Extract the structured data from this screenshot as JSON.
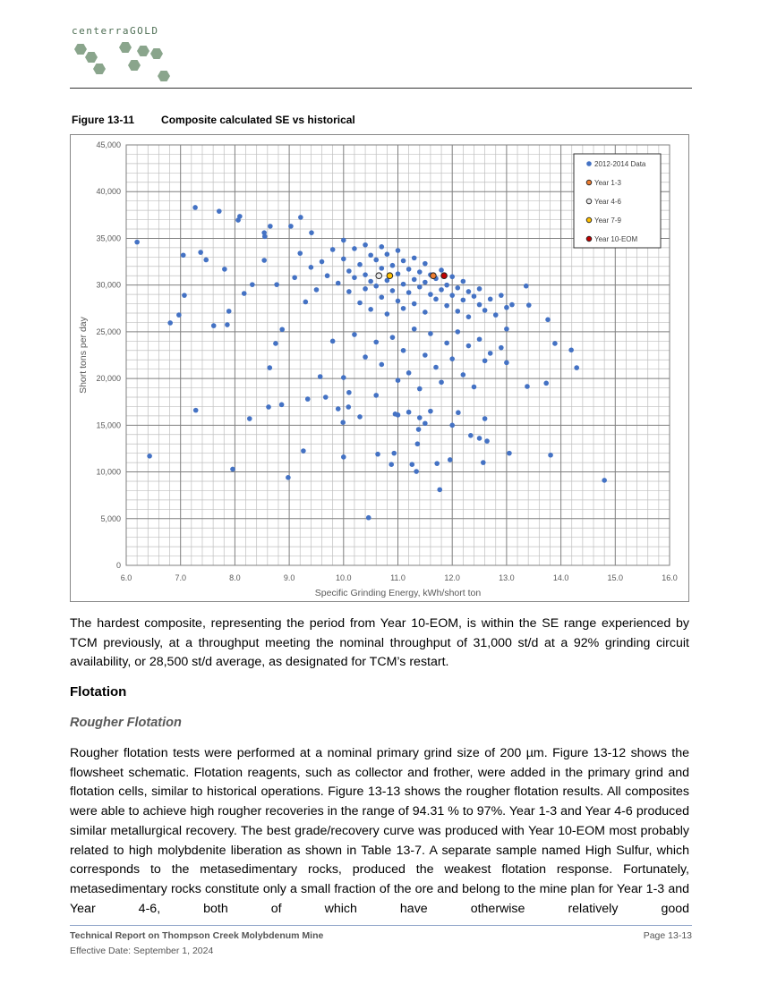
{
  "header": {
    "logo": "centerraGOLD"
  },
  "figure": {
    "label": "Figure 13-11",
    "title": "Composite calculated SE vs historical"
  },
  "chart_data": {
    "type": "scatter",
    "x_label": "Specific Grinding Energy, kWh/short ton",
    "y_label": "Short tons per day",
    "xlim": [
      6,
      16
    ],
    "xticks": [
      {
        "value": 6,
        "label": "6.0"
      },
      {
        "value": 7,
        "label": "7.0"
      },
      {
        "value": 8,
        "label": "8.0"
      },
      {
        "value": 9,
        "label": "9.0"
      },
      {
        "value": 10,
        "label": "10.0"
      },
      {
        "value": 11,
        "label": "11.0"
      },
      {
        "value": 12,
        "label": "12.0"
      },
      {
        "value": 13,
        "label": "13.0"
      },
      {
        "value": 14,
        "label": "14.0"
      },
      {
        "value": 15,
        "label": "15.0"
      },
      {
        "value": 16,
        "label": "16.0"
      }
    ],
    "ylim": [
      0,
      45000
    ],
    "yticks": [
      0,
      {
        "value": 5000,
        "label": "5,000"
      },
      {
        "value": 10000,
        "label": "10,000"
      },
      {
        "value": 15000,
        "label": "15,000"
      },
      {
        "value": 20000,
        "label": "20,000"
      },
      {
        "value": 25000,
        "label": "25,000"
      },
      {
        "value": 30000,
        "label": "30,000"
      },
      {
        "value": 35000,
        "label": "35,000"
      },
      {
        "value": 40000,
        "label": "40,000"
      },
      {
        "value": 45000,
        "label": "45,000"
      }
    ],
    "grid": true,
    "legend": "top-right",
    "series": [
      {
        "name": "2012-2014 Data",
        "color": "#4472c4",
        "x": [
          6.2,
          6.43,
          6.81,
          6.97,
          7.05,
          7.07,
          7.27,
          7.28,
          7.37,
          7.47,
          7.61,
          7.71,
          7.81,
          7.86,
          7.89,
          7.96,
          8.06,
          8.09,
          8.17,
          8.27,
          8.32,
          8.54,
          8.55,
          8.54,
          8.64,
          8.62,
          8.65,
          8.75,
          8.77,
          8.86,
          8.87,
          8.98,
          9.03,
          9.21,
          9.26,
          9.34,
          9.41,
          9.57,
          9.67,
          9.9,
          9.99,
          10.0,
          10.09,
          10.3,
          10.46,
          10.63,
          10.88,
          10.93,
          10.95,
          11.26,
          11.34,
          11.36,
          11.38,
          11.72,
          11.77,
          11.96,
          12.11,
          12.34,
          12.5,
          12.64,
          12.57,
          12.6,
          13.05,
          13.38,
          13.81,
          13.73,
          13.76,
          13.89,
          14.19,
          14.29,
          14.8,
          13.36,
          13.41,
          9.6,
          9.7,
          9.8,
          9.9,
          10.0,
          10.0,
          10.1,
          10.1,
          10.2,
          10.2,
          10.3,
          10.3,
          10.4,
          10.4,
          10.4,
          10.5,
          10.5,
          10.5,
          10.6,
          10.6,
          10.7,
          10.7,
          10.7,
          10.8,
          10.8,
          10.8,
          10.9,
          10.9,
          11.0,
          11.0,
          11.0,
          11.1,
          11.1,
          11.1,
          11.2,
          11.2,
          11.3,
          11.3,
          11.3,
          11.4,
          11.4,
          11.5,
          11.5,
          11.5,
          11.6,
          11.6,
          11.7,
          11.7,
          11.8,
          11.8,
          11.9,
          11.9,
          12.0,
          12.0,
          12.1,
          12.1,
          12.2,
          12.2,
          12.3,
          12.3,
          12.4,
          12.5,
          12.5,
          12.6,
          12.7,
          12.8,
          12.9,
          13.0,
          13.0,
          13.1,
          9.3,
          9.5,
          9.2,
          9.4,
          9.1,
          10.2,
          10.4,
          10.6,
          10.7,
          10.9,
          11.0,
          11.1,
          11.2,
          11.3,
          11.4,
          11.5,
          11.6,
          11.7,
          11.8,
          11.9,
          12.0,
          12.1,
          12.2,
          12.3,
          12.4,
          12.5,
          12.6,
          12.7,
          12.9,
          13.0,
          10.0,
          9.8,
          10.1,
          11.2,
          11.4,
          11.6,
          11.5,
          11.0,
          12.0,
          10.6
        ],
        "values": [
          34600,
          11700,
          25950,
          26800,
          33200,
          28900,
          38300,
          16600,
          33500,
          32700,
          25650,
          37900,
          31700,
          25750,
          27200,
          10300,
          36950,
          37350,
          29100,
          15700,
          30050,
          32650,
          35200,
          35600,
          21150,
          16950,
          36300,
          23750,
          30050,
          17200,
          25250,
          9400,
          36300,
          37250,
          12250,
          17800,
          35600,
          20200,
          18000,
          16750,
          15300,
          11600,
          16950,
          15900,
          5100,
          11900,
          10800,
          12000,
          16200,
          10800,
          10050,
          13000,
          14550,
          10900,
          8100,
          11300,
          16350,
          13900,
          13600,
          13300,
          11000,
          15700,
          12000,
          19150,
          11800,
          19500,
          26300,
          23750,
          23050,
          21150,
          9100,
          29900,
          27850,
          32500,
          31000,
          33800,
          30200,
          32800,
          34800,
          31500,
          29300,
          33900,
          30800,
          32200,
          28100,
          34300,
          31100,
          29600,
          33200,
          30400,
          27400,
          32700,
          29900,
          34100,
          31800,
          28700,
          33300,
          30500,
          26900,
          32100,
          29400,
          33700,
          31200,
          28300,
          32600,
          30100,
          27500,
          31700,
          29200,
          32900,
          30600,
          28000,
          31400,
          29800,
          32300,
          30300,
          27100,
          31100,
          29000,
          30700,
          28500,
          31600,
          29500,
          30000,
          27800,
          30900,
          28900,
          29700,
          27200,
          30400,
          28400,
          29300,
          26600,
          28800,
          27900,
          29600,
          27300,
          28500,
          26800,
          28900,
          27600,
          25300,
          27900,
          28200,
          29500,
          33400,
          31900,
          30800,
          24700,
          22300,
          23900,
          21500,
          24400,
          19800,
          23000,
          20600,
          25300,
          18900,
          22500,
          24800,
          21200,
          19600,
          23800,
          22100,
          25000,
          20400,
          23500,
          19100,
          24200,
          21900,
          22700,
          23300,
          21700,
          20100,
          24000,
          18500,
          16400,
          15800,
          16500,
          15200,
          16100,
          15000,
          18200
        ]
      },
      {
        "name": "Year 1-3",
        "color": "#ed7d31",
        "x": [
          11.65
        ],
        "values": [
          31000
        ]
      },
      {
        "name": "Year 4-6",
        "color": "#e7e6e6",
        "x": [
          10.65
        ],
        "values": [
          31000
        ]
      },
      {
        "name": "Year 7-9",
        "color": "#ffc000",
        "x": [
          10.85
        ],
        "values": [
          31000
        ]
      },
      {
        "name": "Year 10-EOM",
        "color": "#c00000",
        "x": [
          11.85
        ],
        "values": [
          31000
        ]
      }
    ]
  },
  "body": {
    "paragraph_1": "The hardest composite, representing the period from Year 10-EOM, is within the SE range experienced by TCM previously, at a throughput meeting the nominal throughput of 31,000 st/d at a 92% grinding circuit availability, or 28,500 st/d average, as designated for TCM’s restart.",
    "heading": "Flotation",
    "subheading": "Rougher Flotation",
    "paragraph_2": "Rougher flotation tests were performed at a nominal primary grind size of 200 µm. Figure 13-12 shows the flowsheet schematic. Flotation reagents, such as collector and frother, were added in the primary grind and flotation cells, similar to historical operations. Figure 13-13 shows the rougher flotation results. All composites were able to achieve high rougher recoveries in the range of 94.31 % to 97%. Year 1-3 and Year 4-6 produced similar metallurgical recovery. The best grade/recovery curve was produced with Year 10-EOM most probably related to high molybdenite liberation as shown in Table 13-7. A separate sample named High Sulfur, which corresponds to the metasedimentary rocks, produced the weakest flotation response. Fortunately, metasedimentary rocks constitute only a small fraction of the ore and belong to the mine plan for Year 1-3 and Year 4-6, both of which have otherwise relatively good"
  },
  "footer": {
    "report": "Technical Report on Thompson Creek Molybdenum Mine",
    "date": "Effective Date: September 1, 2024",
    "page": "Page 13-13"
  }
}
